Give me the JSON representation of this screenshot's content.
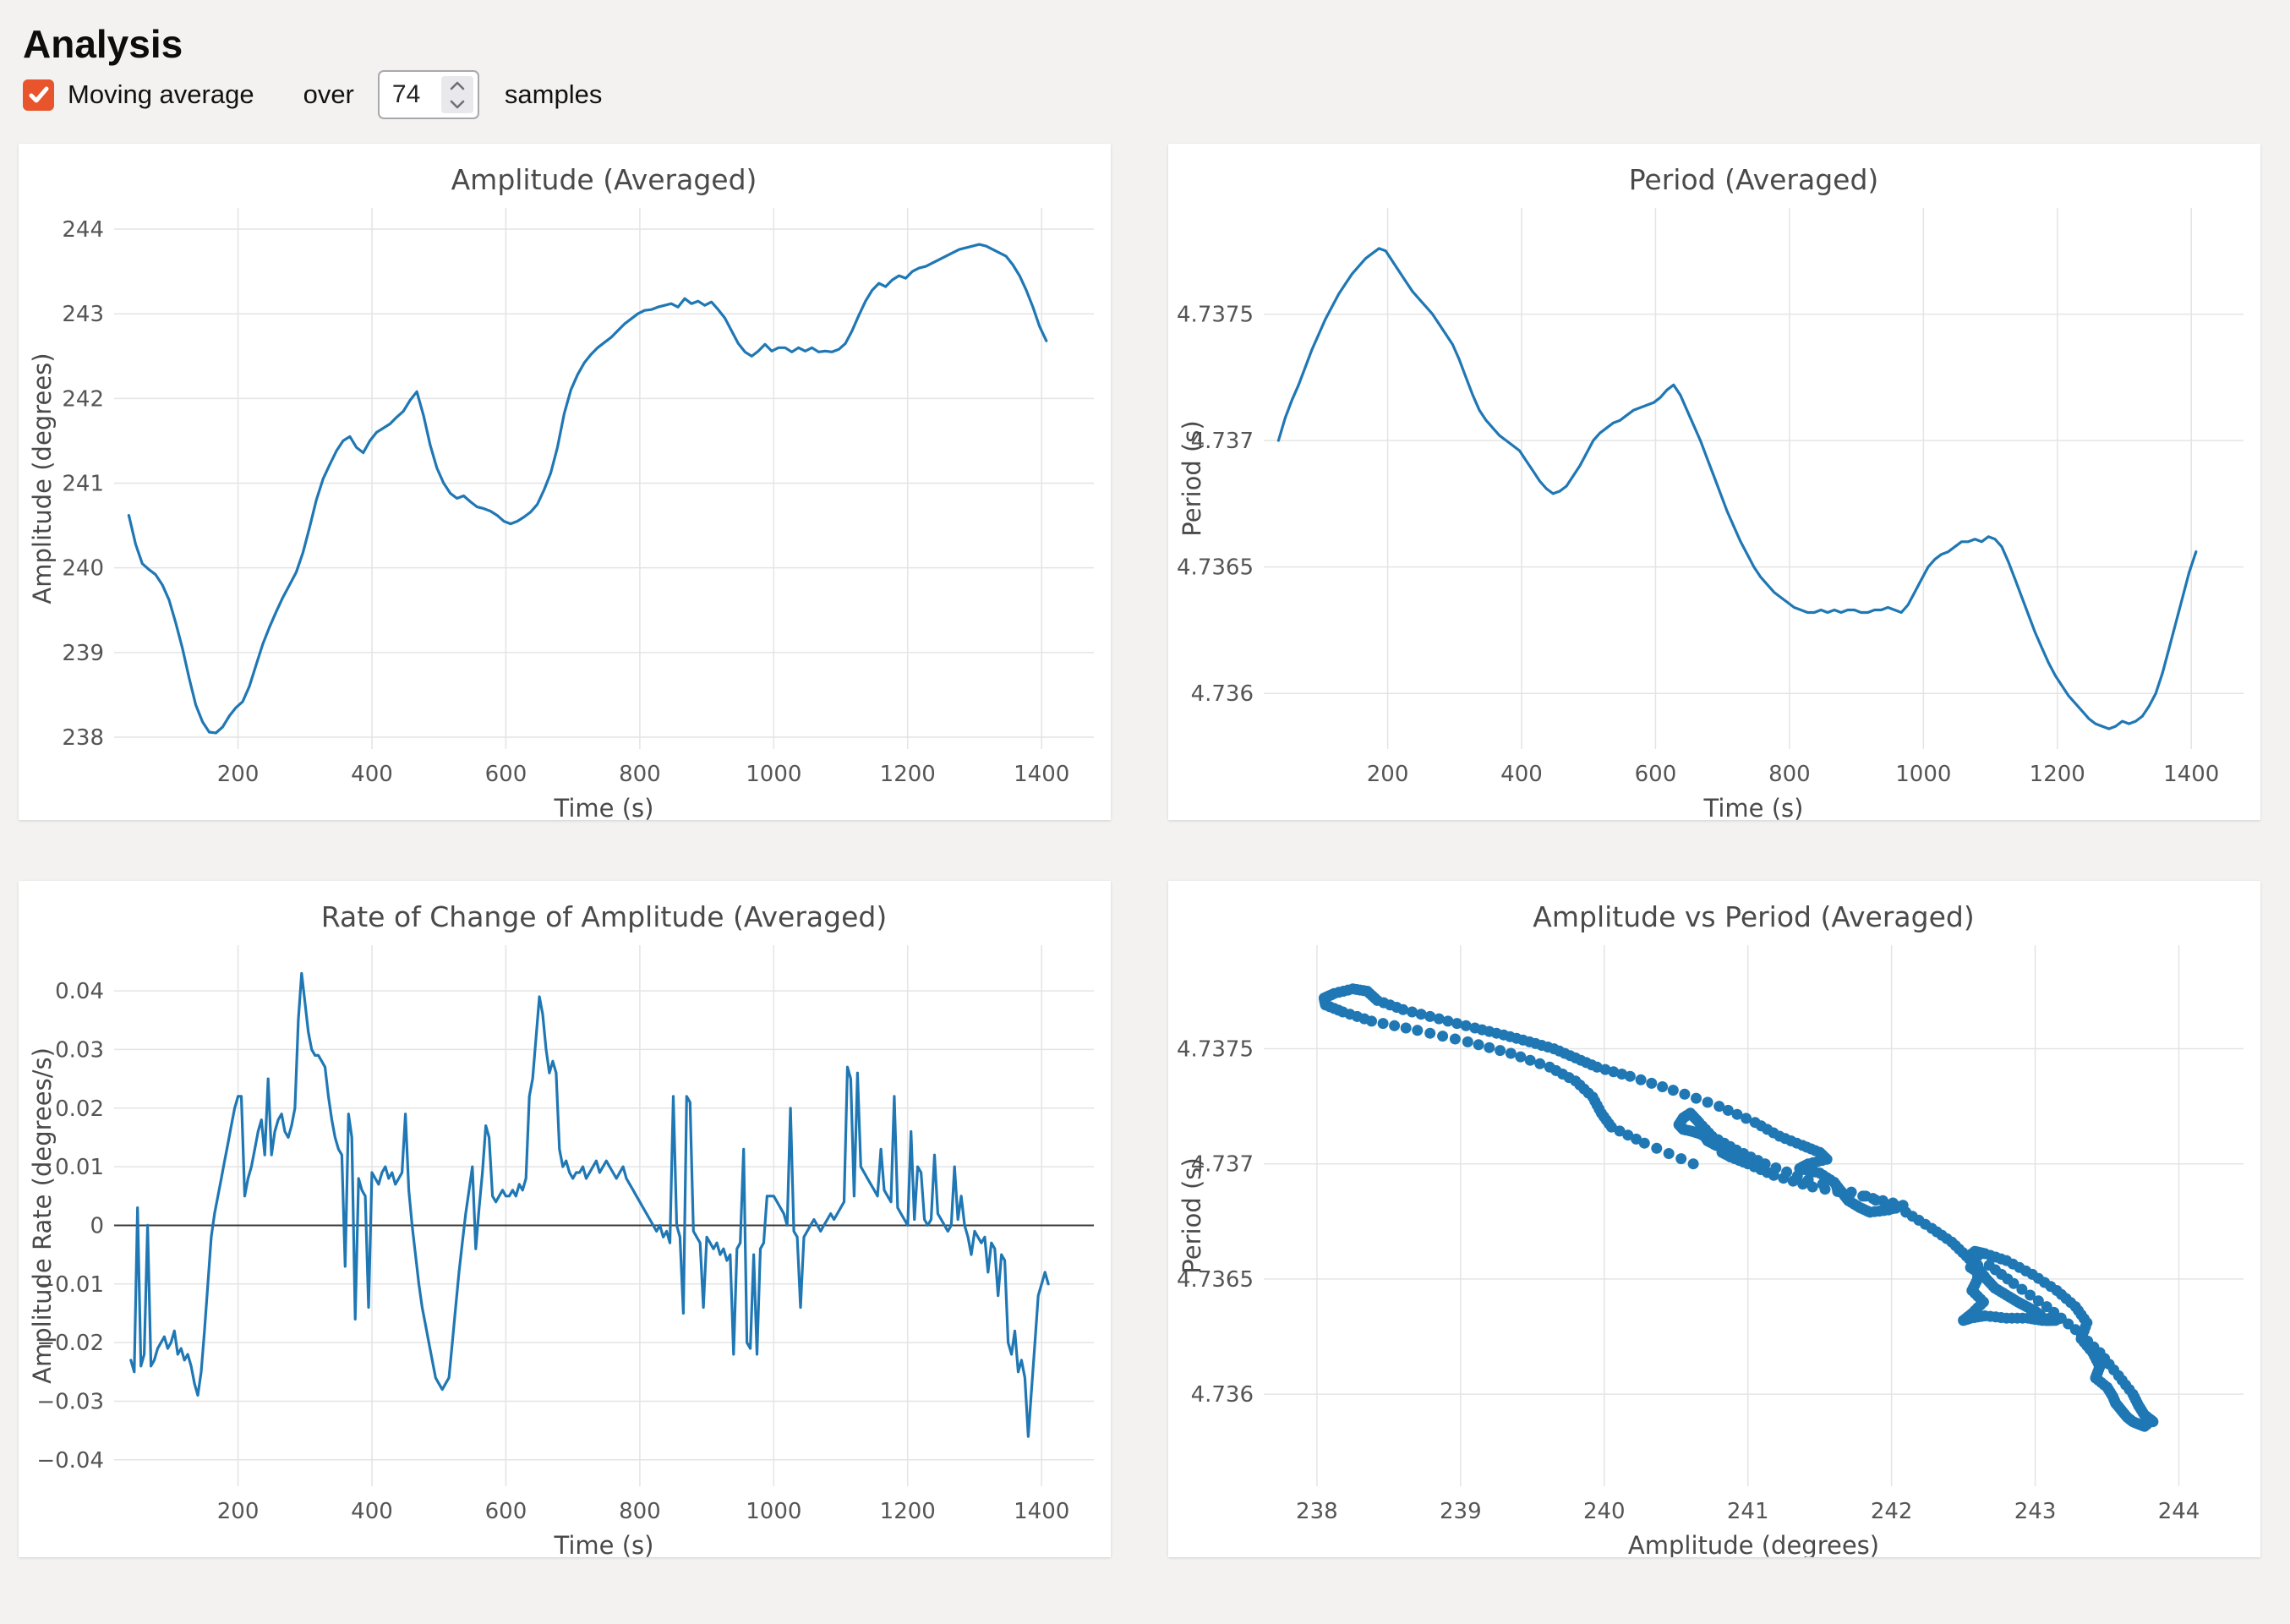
{
  "page": {
    "title": "Analysis"
  },
  "controls": {
    "moving_average_label": "Moving average",
    "moving_average_checked": true,
    "over_label": "over",
    "samples_value": "74",
    "samples_label": "samples"
  },
  "colors": {
    "accent_checkbox": "#e8542b",
    "line_blue": "#1f77b4",
    "grid": "#e4e4e4",
    "page_background": "#f3f2f0",
    "panel_background": "#ffffff",
    "text": "#4a4a4a"
  },
  "chart_data": {
    "x_time": {
      "x0": 37,
      "dx": 10
    },
    "series": {
      "amplitude": [
        240.62,
        240.28,
        240.05,
        239.98,
        239.92,
        239.8,
        239.62,
        239.35,
        239.05,
        238.7,
        238.38,
        238.18,
        238.06,
        238.05,
        238.12,
        238.25,
        238.35,
        238.42,
        238.6,
        238.85,
        239.1,
        239.3,
        239.48,
        239.65,
        239.8,
        239.95,
        240.18,
        240.48,
        240.8,
        241.05,
        241.22,
        241.38,
        241.5,
        241.55,
        241.42,
        241.36,
        241.5,
        241.6,
        241.65,
        241.7,
        241.78,
        241.85,
        241.98,
        242.08,
        241.8,
        241.45,
        241.18,
        241.0,
        240.88,
        240.82,
        240.85,
        240.78,
        240.72,
        240.7,
        240.67,
        240.62,
        240.55,
        240.52,
        240.55,
        240.6,
        240.66,
        240.75,
        240.92,
        241.12,
        241.42,
        241.82,
        242.1,
        242.28,
        242.42,
        242.52,
        242.6,
        242.66,
        242.72,
        242.8,
        242.88,
        242.94,
        243.0,
        243.04,
        243.05,
        243.08,
        243.1,
        243.12,
        243.08,
        243.18,
        243.12,
        243.15,
        243.1,
        243.14,
        243.05,
        242.95,
        242.8,
        242.65,
        242.55,
        242.5,
        242.56,
        242.64,
        242.56,
        242.6,
        242.6,
        242.55,
        242.6,
        242.56,
        242.6,
        242.55,
        242.56,
        242.55,
        242.58,
        242.65,
        242.8,
        242.98,
        243.15,
        243.28,
        243.36,
        243.32,
        243.4,
        243.45,
        243.42,
        243.5,
        243.54,
        243.56,
        243.6,
        243.64,
        243.68,
        243.72,
        243.76,
        243.78,
        243.8,
        243.82,
        243.8,
        243.76,
        243.72,
        243.68,
        243.58,
        243.45,
        243.28,
        243.08,
        242.85,
        242.68
      ],
      "period": [
        4.737,
        4.73709,
        4.73716,
        4.73722,
        4.73729,
        4.73736,
        4.73742,
        4.73748,
        4.73753,
        4.73758,
        4.73762,
        4.73766,
        4.73769,
        4.73772,
        4.73774,
        4.73776,
        4.73775,
        4.73771,
        4.73767,
        4.73763,
        4.73759,
        4.73756,
        4.73753,
        4.7375,
        4.73746,
        4.73742,
        4.73738,
        4.73732,
        4.73725,
        4.73718,
        4.73712,
        4.73708,
        4.73705,
        4.73702,
        4.737,
        4.73698,
        4.73696,
        4.73692,
        4.73688,
        4.73684,
        4.73681,
        4.73679,
        4.7368,
        4.73682,
        4.73686,
        4.7369,
        4.73695,
        4.737,
        4.73703,
        4.73705,
        4.73707,
        4.73708,
        4.7371,
        4.73712,
        4.73713,
        4.73714,
        4.73715,
        4.73717,
        4.7372,
        4.73722,
        4.73718,
        4.73712,
        4.73706,
        4.737,
        4.73693,
        4.73686,
        4.73679,
        4.73672,
        4.73666,
        4.7366,
        4.73655,
        4.7365,
        4.73646,
        4.73643,
        4.7364,
        4.73638,
        4.73636,
        4.73634,
        4.73633,
        4.73632,
        4.73632,
        4.73633,
        4.73632,
        4.73633,
        4.73632,
        4.73633,
        4.73633,
        4.73632,
        4.73632,
        4.73633,
        4.73633,
        4.73634,
        4.73633,
        4.73632,
        4.73635,
        4.7364,
        4.73645,
        4.7365,
        4.73653,
        4.73655,
        4.73656,
        4.73658,
        4.7366,
        4.7366,
        4.73661,
        4.7366,
        4.73662,
        4.73661,
        4.73658,
        4.73652,
        4.73645,
        4.73638,
        4.73631,
        4.73624,
        4.73618,
        4.73612,
        4.73607,
        4.73603,
        4.73599,
        4.73596,
        4.73593,
        4.7359,
        4.73588,
        4.73587,
        4.73586,
        4.73587,
        4.73589,
        4.73588,
        4.73589,
        4.73591,
        4.73595,
        4.736,
        4.73608,
        4.73618,
        4.73628,
        4.73638,
        4.73648,
        4.73656
      ],
      "amplitude_rate": {
        "x0": 40,
        "dx": 5,
        "values": [
          -0.023,
          -0.025,
          0.003,
          -0.024,
          -0.022,
          0,
          -0.024,
          -0.023,
          -0.021,
          -0.02,
          -0.019,
          -0.021,
          -0.02,
          -0.018,
          -0.022,
          -0.021,
          -0.023,
          -0.022,
          -0.024,
          -0.027,
          -0.029,
          -0.025,
          -0.018,
          -0.01,
          -0.002,
          0.002,
          0.005,
          0.008,
          0.011,
          0.014,
          0.017,
          0.02,
          0.022,
          0.022,
          0.005,
          0.008,
          0.01,
          0.013,
          0.016,
          0.018,
          0.012,
          0.025,
          0.012,
          0.016,
          0.018,
          0.019,
          0.016,
          0.015,
          0.017,
          0.02,
          0.035,
          0.043,
          0.038,
          0.033,
          0.03,
          0.029,
          0.029,
          0.028,
          0.027,
          0.022,
          0.018,
          0.015,
          0.013,
          0.012,
          -0.007,
          0.019,
          0.015,
          -0.016,
          0.008,
          0.006,
          0.005,
          -0.014,
          0.009,
          0.008,
          0.007,
          0.009,
          0.01,
          0.008,
          0.009,
          0.007,
          0.008,
          0.009,
          0.019,
          0.006,
          0,
          -0.005,
          -0.01,
          -0.014,
          -0.017,
          -0.02,
          -0.023,
          -0.026,
          -0.027,
          -0.028,
          -0.027,
          -0.026,
          -0.02,
          -0.014,
          -0.008,
          -0.003,
          0.002,
          0.006,
          0.01,
          -0.004,
          0.003,
          0.009,
          0.017,
          0.015,
          0.005,
          0.004,
          0.005,
          0.006,
          0.005,
          0.005,
          0.006,
          0.005,
          0.007,
          0.006,
          0.008,
          0.022,
          0.025,
          0.032,
          0.039,
          0.036,
          0.03,
          0.026,
          0.028,
          0.026,
          0.013,
          0.01,
          0.011,
          0.009,
          0.008,
          0.009,
          0.009,
          0.01,
          0.008,
          0.009,
          0.01,
          0.011,
          0.009,
          0.01,
          0.011,
          0.01,
          0.009,
          0.008,
          0.009,
          0.01,
          0.008,
          0.007,
          0.006,
          0.005,
          0.004,
          0.003,
          0.002,
          0.001,
          0,
          -0.001,
          0,
          -0.002,
          -0.001,
          -0.003,
          0.022,
          0,
          -0.002,
          -0.015,
          0.022,
          0.021,
          -0.001,
          -0.002,
          -0.003,
          -0.014,
          -0.002,
          -0.003,
          -0.004,
          -0.003,
          -0.005,
          -0.004,
          -0.006,
          -0.005,
          -0.022,
          -0.004,
          -0.003,
          0.013,
          -0.02,
          -0.021,
          -0.005,
          -0.022,
          -0.004,
          -0.003,
          0.005,
          0.005,
          0.005,
          0.004,
          0.003,
          0.002,
          0,
          0.02,
          -0.001,
          -0.002,
          -0.014,
          -0.002,
          -0.001,
          0,
          0.001,
          0,
          -0.001,
          0,
          0.001,
          0.002,
          0.001,
          0.002,
          0.003,
          0.004,
          0.027,
          0.025,
          0.005,
          0.026,
          0.01,
          0.009,
          0.008,
          0.007,
          0.006,
          0.005,
          0.013,
          0.006,
          0.005,
          0.004,
          0.022,
          0.003,
          0.002,
          0.001,
          0,
          0.016,
          0.001,
          0.01,
          0.009,
          0.001,
          0,
          0.001,
          0.012,
          0.002,
          0.001,
          0,
          -0.001,
          0,
          0.01,
          0.001,
          0.005,
          0,
          -0.002,
          -0.005,
          -0.001,
          -0.002,
          -0.003,
          -0.002,
          -0.008,
          -0.003,
          -0.004,
          -0.012,
          -0.005,
          -0.006,
          -0.02,
          -0.022,
          -0.018,
          -0.025,
          -0.023,
          -0.026,
          -0.036,
          -0.028,
          -0.02,
          -0.012,
          -0.01,
          -0.008,
          -0.01
        ]
      }
    },
    "charts": [
      {
        "type": "line",
        "title": "Amplitude (Averaged)",
        "xlabel": "Time (s)",
        "ylabel": "Amplitude (degrees)",
        "series_y": "amplitude",
        "line_color": "#1f77b4",
        "grid": true,
        "xlim": [
          15,
          1478
        ],
        "ylim": [
          237.86,
          244.25
        ],
        "xticks": [
          200,
          400,
          600,
          800,
          1000,
          1200,
          1400
        ],
        "xtick_labels": [
          "200",
          "400",
          "600",
          "800",
          "1000",
          "1200",
          "1400"
        ],
        "yticks": [
          238,
          239,
          240,
          241,
          242,
          243,
          244
        ],
        "ytick_labels": [
          "238",
          "239",
          "240",
          "241",
          "242",
          "243",
          "244"
        ]
      },
      {
        "type": "line",
        "title": "Period (Averaged)",
        "xlabel": "Time (s)",
        "ylabel": "Period (s)",
        "series_y": "period",
        "line_color": "#1f77b4",
        "grid": true,
        "xlim": [
          15,
          1478
        ],
        "ylim": [
          4.73578,
          4.73792
        ],
        "xticks": [
          200,
          400,
          600,
          800,
          1000,
          1200,
          1400
        ],
        "xtick_labels": [
          "200",
          "400",
          "600",
          "800",
          "1000",
          "1200",
          "1400"
        ],
        "yticks": [
          4.736,
          4.7365,
          4.737,
          4.7375
        ],
        "ytick_labels": [
          "4.736",
          "4.7365",
          "4.737",
          "4.7375"
        ]
      },
      {
        "type": "line",
        "title": "Rate of Change of Amplitude (Averaged)",
        "xlabel": "Time (s)",
        "ylabel": "Amplitude Rate (degrees/s)",
        "series_y": "amplitude_rate",
        "line_color": "#1f77b4",
        "grid": true,
        "zero_line": true,
        "xlim": [
          15,
          1478
        ],
        "ylim": [
          -0.0445,
          0.0478
        ],
        "xticks": [
          200,
          400,
          600,
          800,
          1000,
          1200,
          1400
        ],
        "xtick_labels": [
          "200",
          "400",
          "600",
          "800",
          "1000",
          "1200",
          "1400"
        ],
        "yticks": [
          -0.04,
          -0.03,
          -0.02,
          -0.01,
          0,
          0.01,
          0.02,
          0.03,
          0.04
        ],
        "ytick_labels": [
          "−0.04",
          "−0.03",
          "−0.02",
          "−0.01",
          "0",
          "0.01",
          "0.02",
          "0.03",
          "0.04"
        ]
      },
      {
        "type": "scatter",
        "title": "Amplitude vs Period (Averaged)",
        "xlabel": "Amplitude (degrees)",
        "ylabel": "Period (s)",
        "x_series": "amplitude",
        "y_series": "period",
        "dot_color": "#1f77b4",
        "dot_radius": 6.5,
        "interp": 4,
        "grid": true,
        "xlim": [
          237.63,
          244.45
        ],
        "ylim": [
          4.7356,
          4.73795
        ],
        "xticks": [
          238,
          239,
          240,
          241,
          242,
          243,
          244
        ],
        "xtick_labels": [
          "238",
          "239",
          "240",
          "241",
          "242",
          "243",
          "244"
        ],
        "yticks": [
          4.736,
          4.7365,
          4.737,
          4.7375
        ],
        "ytick_labels": [
          "4.736",
          "4.7365",
          "4.737",
          "4.7375"
        ]
      }
    ]
  }
}
